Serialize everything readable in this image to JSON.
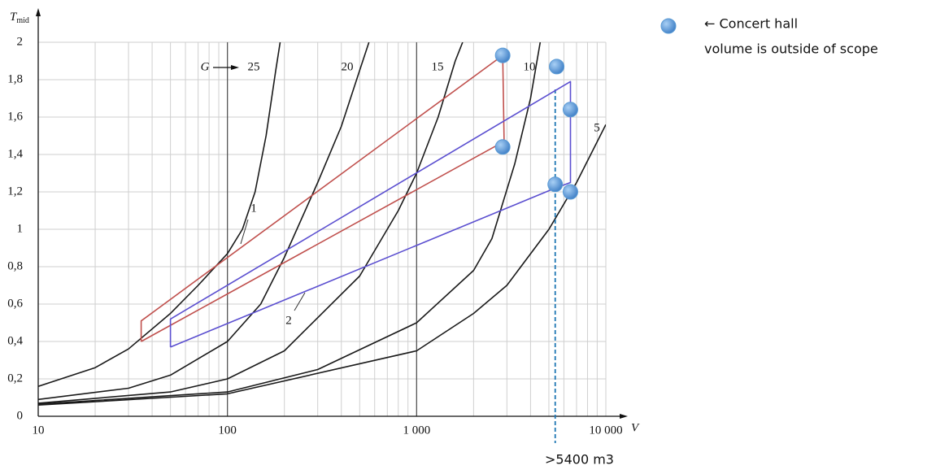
{
  "chart_data": {
    "type": "line",
    "x_scale": "log",
    "y_label": "T",
    "y_label_sub": "mid",
    "x_label": "V",
    "curve_prefix": "G",
    "xlim": [
      10,
      10000
    ],
    "ylim": [
      0,
      2
    ],
    "xticks": [
      10,
      100,
      {
        "value": 1000,
        "label": "1 000"
      },
      {
        "value": 10000,
        "label": "10 000"
      }
    ],
    "xminorticks": [
      20,
      30,
      40,
      50,
      60,
      70,
      80,
      90,
      200,
      300,
      400,
      500,
      600,
      700,
      800,
      900,
      2000,
      3000,
      4000,
      5000,
      6000,
      7000,
      8000,
      9000
    ],
    "yticks": [
      0,
      {
        "value": 0.2,
        "label": "0,2"
      },
      {
        "value": 0.4,
        "label": "0,4"
      },
      {
        "value": 0.6,
        "label": "0,6"
      },
      {
        "value": 0.8,
        "label": "0,8"
      },
      1,
      {
        "value": 1.2,
        "label": "1,2"
      },
      {
        "value": 1.4,
        "label": "1,4"
      },
      {
        "value": 1.6,
        "label": "1,6"
      },
      {
        "value": 1.8,
        "label": "1,8"
      },
      2
    ],
    "grid": true,
    "series": [
      {
        "name": "25",
        "type": "line",
        "color": "#1a1a1a",
        "x": [
          10,
          20,
          30,
          50,
          70,
          100,
          120,
          140,
          160,
          180,
          190
        ],
        "values": [
          0.16,
          0.26,
          0.36,
          0.55,
          0.7,
          0.87,
          1.0,
          1.2,
          1.5,
          1.85,
          2
        ]
      },
      {
        "name": "20",
        "type": "line",
        "color": "#1a1a1a",
        "x": [
          10,
          30,
          50,
          100,
          150,
          200,
          300,
          400,
          500,
          560
        ],
        "values": [
          0.09,
          0.15,
          0.22,
          0.4,
          0.6,
          0.85,
          1.25,
          1.55,
          1.85,
          2
        ]
      },
      {
        "name": "15",
        "type": "line",
        "color": "#1a1a1a",
        "x": [
          10,
          50,
          100,
          200,
          500,
          800,
          1000,
          1300,
          1600,
          1750
        ],
        "values": [
          0.07,
          0.13,
          0.2,
          0.35,
          0.75,
          1.1,
          1.3,
          1.6,
          1.9,
          2
        ]
      },
      {
        "name": "10",
        "type": "line",
        "color": "#1a1a1a",
        "x": [
          10,
          100,
          300,
          1000,
          2000,
          2500,
          3300,
          4000,
          4500
        ],
        "values": [
          0.065,
          0.13,
          0.25,
          0.5,
          0.78,
          0.95,
          1.35,
          1.7,
          2
        ]
      },
      {
        "name": "5",
        "type": "line",
        "color": "#1a1a1a",
        "x": [
          10,
          100,
          1000,
          2000,
          3000,
          5000,
          7000,
          10000
        ],
        "values": [
          0.06,
          0.12,
          0.35,
          0.55,
          0.7,
          1.0,
          1.25,
          1.56
        ]
      },
      {
        "name": "1",
        "type": "line",
        "color": "#c0504d",
        "x": [
          35,
          35,
          2850,
          2900,
          35
        ],
        "values": [
          0.4,
          0.51,
          1.93,
          1.47,
          0.4
        ]
      },
      {
        "name": "2",
        "type": "line",
        "color": "#5b4fd0",
        "x": [
          50,
          50,
          6500,
          6500,
          5400,
          50
        ],
        "values": [
          0.37,
          0.52,
          1.79,
          1.25,
          1.22,
          0.37
        ]
      },
      {
        "name": "← Concert hall",
        "type": "scatter",
        "color": "#5b9bd5",
        "x": [
          2850,
          2850,
          5500,
          6500,
          5400,
          6500
        ],
        "values": [
          1.93,
          1.44,
          1.87,
          1.64,
          1.24,
          1.2
        ]
      }
    ],
    "legend_note": "volume is outside of scope",
    "reference_line": {
      "x": 5400,
      "label": ">5400 m3",
      "color": "#1f77b4"
    }
  }
}
